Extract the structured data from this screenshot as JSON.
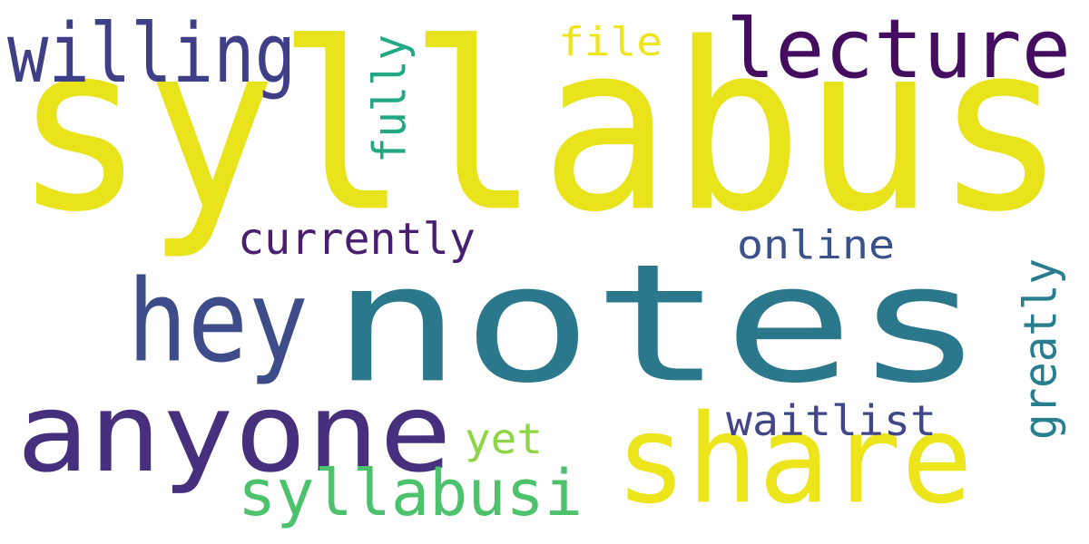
{
  "words": [
    {
      "text": "syllabus",
      "color": "#e8e31b",
      "weight": 100
    },
    {
      "text": "notes",
      "color": "#2b788c",
      "weight": 86
    },
    {
      "text": "anyone",
      "color": "#46307e",
      "weight": 52
    },
    {
      "text": "share",
      "color": "#ede51b",
      "weight": 44
    },
    {
      "text": "hey",
      "color": "#3e4c8a",
      "weight": 40
    },
    {
      "text": "lecture",
      "color": "#440d5f",
      "weight": 36
    },
    {
      "text": "willing",
      "color": "#3f3f87",
      "weight": 30
    },
    {
      "text": "syllabusi",
      "color": "#4cc26c",
      "weight": 25
    },
    {
      "text": "currently",
      "color": "#481f6f",
      "weight": 15
    },
    {
      "text": "waitlist",
      "color": "#404688",
      "weight": 15
    },
    {
      "text": "online",
      "color": "#3b518b",
      "weight": 14
    },
    {
      "text": "fully",
      "color": "#22a884",
      "weight": 14
    },
    {
      "text": "greatly",
      "color": "#287d8e",
      "weight": 14
    },
    {
      "text": "yet",
      "color": "#8ed645",
      "weight": 12
    },
    {
      "text": "file",
      "color": "#efe51c",
      "weight": 12
    }
  ]
}
